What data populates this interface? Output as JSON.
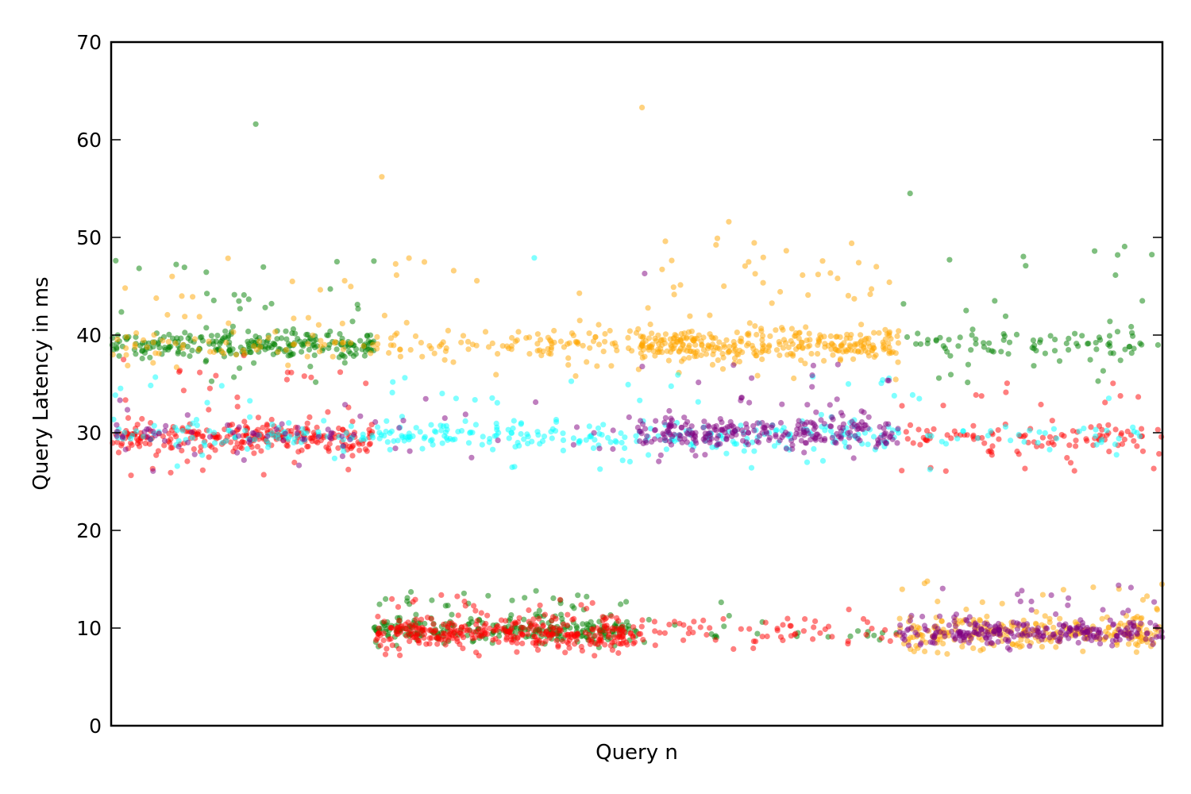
{
  "chart_data": {
    "type": "scatter",
    "title": "",
    "xlabel": "Query n",
    "ylabel": "Query Latency in ms",
    "ylim": [
      0,
      70
    ],
    "yticks": [
      0,
      10,
      20,
      30,
      40,
      50,
      60,
      70
    ],
    "ytick_labels": [
      "0",
      "10",
      "20",
      "30",
      "40",
      "50",
      "60",
      "70"
    ],
    "xlim": [
      0,
      4000
    ],
    "xticks_shown": false,
    "grid": false,
    "legend": "none",
    "series": [
      {
        "color": "#008000",
        "segments": [
          {
            "x_start": 0,
            "x_end": 1000,
            "center": 39,
            "spread": 1.4,
            "count": 230,
            "outlier_range": [
              35,
              48
            ],
            "outlier_count": 40
          },
          {
            "x_start": 1000,
            "x_end": 2000,
            "center": 9.8,
            "spread": 1.3,
            "count": 240,
            "outlier_range": [
              10.5,
              14
            ],
            "outlier_count": 40
          },
          {
            "x_start": 2000,
            "x_end": 3000,
            "center": 9.5,
            "spread": 1.3,
            "count": 18,
            "outlier_range": [
              8,
              14
            ],
            "outlier_count": 5
          },
          {
            "x_start": 3000,
            "x_end": 4000,
            "center": 39,
            "spread": 1.5,
            "count": 75,
            "outlier_range": [
              35,
              50
            ],
            "outlier_count": 25
          }
        ],
        "extremes": [
          {
            "x": 550,
            "y": 61.6
          },
          {
            "x": 3040,
            "y": 54.5
          }
        ]
      },
      {
        "color": "#ff0000",
        "segments": [
          {
            "x_start": 0,
            "x_end": 1000,
            "center": 29.5,
            "spread": 1.4,
            "count": 240,
            "outlier_range": [
              25.5,
              38
            ],
            "outlier_count": 40
          },
          {
            "x_start": 1000,
            "x_end": 2000,
            "center": 9.5,
            "spread": 1.4,
            "count": 300,
            "outlier_range": [
              7,
              13.5
            ],
            "outlier_count": 60
          },
          {
            "x_start": 2000,
            "x_end": 3000,
            "center": 9.5,
            "spread": 1.3,
            "count": 55,
            "outlier_range": [
              7.5,
              13
            ],
            "outlier_count": 10
          },
          {
            "x_start": 3000,
            "x_end": 4000,
            "center": 29.5,
            "spread": 1.5,
            "count": 85,
            "outlier_range": [
              26,
              36
            ],
            "outlier_count": 30
          }
        ],
        "extremes": []
      },
      {
        "color": "#ffa500",
        "segments": [
          {
            "x_start": 0,
            "x_end": 1000,
            "center": 39,
            "spread": 1.6,
            "count": 60,
            "outlier_range": [
              35,
              48
            ],
            "outlier_count": 20
          },
          {
            "x_start": 1000,
            "x_end": 2000,
            "center": 39,
            "spread": 1.5,
            "count": 95,
            "outlier_range": [
              35,
              48
            ],
            "outlier_count": 20
          },
          {
            "x_start": 2000,
            "x_end": 3000,
            "center": 39,
            "spread": 1.5,
            "count": 300,
            "outlier_range": [
              35,
              50
            ],
            "outlier_count": 55
          },
          {
            "x_start": 3000,
            "x_end": 4000,
            "center": 9.5,
            "spread": 1.6,
            "count": 230,
            "outlier_range": [
              7.5,
              15
            ],
            "outlier_count": 40
          }
        ],
        "extremes": [
          {
            "x": 1030,
            "y": 56.2
          },
          {
            "x": 2020,
            "y": 63.3
          },
          {
            "x": 2350,
            "y": 51.6
          }
        ]
      },
      {
        "color": "#00ffff",
        "segments": [
          {
            "x_start": 0,
            "x_end": 1000,
            "center": 29.8,
            "spread": 1.3,
            "count": 75,
            "outlier_range": [
              26,
              36
            ],
            "outlier_count": 20
          },
          {
            "x_start": 1000,
            "x_end": 2000,
            "center": 29.8,
            "spread": 1.4,
            "count": 110,
            "outlier_range": [
              26,
              36
            ],
            "outlier_count": 30
          },
          {
            "x_start": 2000,
            "x_end": 3000,
            "center": 29.8,
            "spread": 1.4,
            "count": 100,
            "outlier_range": [
              26,
              36
            ],
            "outlier_count": 25
          },
          {
            "x_start": 3000,
            "x_end": 4000,
            "center": 29.8,
            "spread": 1.4,
            "count": 30,
            "outlier_range": [
              26,
              34
            ],
            "outlier_count": 10
          }
        ],
        "extremes": [
          {
            "x": 1610,
            "y": 47.9
          }
        ]
      },
      {
        "color": "#800080",
        "segments": [
          {
            "x_start": 0,
            "x_end": 1000,
            "center": 29.8,
            "spread": 1.3,
            "count": 45,
            "outlier_range": [
              26,
              35
            ],
            "outlier_count": 15
          },
          {
            "x_start": 1000,
            "x_end": 2000,
            "center": 30,
            "spread": 2.0,
            "count": 12,
            "outlier_range": [
              27,
              36
            ],
            "outlier_count": 6
          },
          {
            "x_start": 2000,
            "x_end": 3000,
            "center": 30,
            "spread": 1.5,
            "count": 230,
            "outlier_range": [
              26.5,
              37
            ],
            "outlier_count": 45
          },
          {
            "x_start": 3000,
            "x_end": 4000,
            "center": 9.5,
            "spread": 1.3,
            "count": 230,
            "outlier_range": [
              7.5,
              14.5
            ],
            "outlier_count": 40
          }
        ],
        "extremes": [
          {
            "x": 2030,
            "y": 46.3
          }
        ]
      }
    ]
  }
}
